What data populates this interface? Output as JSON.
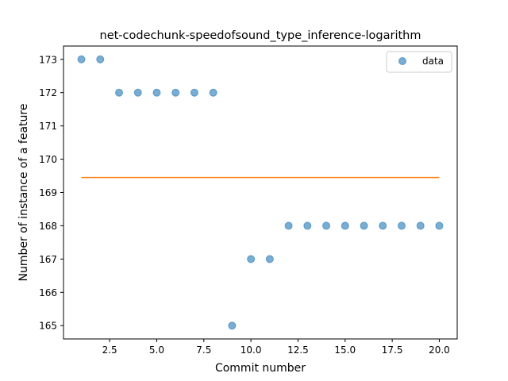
{
  "chart_data": {
    "type": "scatter",
    "title": "net-codechunk-speedofsound_type_inference-logarithm",
    "xlabel": "Commit number",
    "ylabel": "Number of instance of a feature",
    "xlim": [
      0.05,
      20.95
    ],
    "ylim": [
      164.6,
      173.4
    ],
    "xticks": [
      2.5,
      5.0,
      7.5,
      10.0,
      12.5,
      15.0,
      17.5,
      20.0
    ],
    "xtick_labels": [
      "2.5",
      "5.0",
      "7.5",
      "10.0",
      "12.5",
      "15.0",
      "17.5",
      "20.0"
    ],
    "yticks": [
      165,
      166,
      167,
      168,
      169,
      170,
      171,
      172,
      173
    ],
    "ytick_labels": [
      "165",
      "166",
      "167",
      "168",
      "169",
      "170",
      "171",
      "172",
      "173"
    ],
    "grid": false,
    "legend_position": "top-right",
    "series": [
      {
        "name": "data",
        "kind": "scatter",
        "color": "#1f77b4",
        "x": [
          1,
          2,
          3,
          4,
          5,
          6,
          7,
          8,
          9,
          10,
          11,
          12,
          13,
          14,
          15,
          16,
          17,
          18,
          19,
          20
        ],
        "y": [
          173,
          173,
          172,
          172,
          172,
          172,
          172,
          172,
          165,
          167,
          167,
          168,
          168,
          168,
          168,
          168,
          168,
          168,
          168,
          168
        ]
      },
      {
        "kind": "line",
        "color": "#ff7f0e",
        "x": [
          1,
          20
        ],
        "y": [
          169.45,
          169.45
        ]
      }
    ]
  }
}
